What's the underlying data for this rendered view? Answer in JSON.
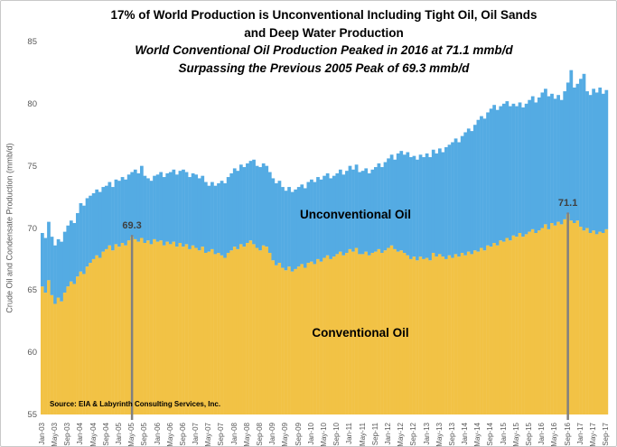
{
  "title": {
    "line1": "17% of World Production is Unconventional Including Tight Oil, Oil Sands",
    "line2": "and Deep Water Production",
    "line3": "World Conventional Oil Production Peaked in 2016 at 71.1 mmb/d",
    "line4": "Surpassing the Previous 2005 Peak of 69.3 mmb/d"
  },
  "source_note": "Source: EIA &  Labyrinth Consulting  Services, Inc.",
  "chart_data": {
    "type": "bar",
    "stacked": true,
    "frequency": "monthly",
    "x_start": "Jan-03",
    "x_end": "Sep-17",
    "ylabel": "Crude Oil and Condensate Production  (mmb/d)",
    "ylim": [
      55,
      85
    ],
    "yticks": [
      85,
      80,
      75,
      70,
      65,
      60,
      55
    ],
    "grid": false,
    "x_tick_labels": [
      "Jan-03",
      "May-03",
      "Sep-03",
      "Jan-04",
      "May-04",
      "Sep-04",
      "Jan-05",
      "May-05",
      "Sep-05",
      "Jan-06",
      "May-06",
      "Sep-06",
      "Jan-07",
      "May-07",
      "Sep-07",
      "Jan-08",
      "May-08",
      "Sep-08",
      "Jan-09",
      "May-09",
      "Sep-09",
      "Jan-10",
      "May-10",
      "Sep-10",
      "Jan-11",
      "May-11",
      "Sep-11",
      "Jan-12",
      "May-12",
      "Sep-12",
      "Jan-13",
      "May-13",
      "Sep-13",
      "Jan-14",
      "May-14",
      "Sep-14",
      "Jan-15",
      "May-15",
      "Sep-15",
      "Jan-16",
      "May-16",
      "Sep-16",
      "Jan-17",
      "May-17",
      "Sep-17"
    ],
    "x_tick_interval_months": 4,
    "annotation_line_color": "#808080",
    "annotations": [
      {
        "text": "69.3",
        "x": "May-05",
        "month_index": 28,
        "y": 69.3
      },
      {
        "text": "71.1",
        "x": "Sep-16",
        "month_index": 164,
        "y": 71.1
      }
    ],
    "series": [
      {
        "name": "Conventional Oil",
        "color": "#F2C245",
        "values": [
          65.3,
          64.8,
          65.8,
          64.6,
          63.9,
          64.4,
          64.1,
          64.8,
          65.3,
          65.7,
          65.5,
          66.1,
          66.5,
          66.3,
          66.9,
          67.2,
          67.5,
          67.8,
          67.6,
          68.1,
          68.3,
          68.6,
          68.2,
          68.7,
          68.5,
          68.8,
          68.6,
          69.0,
          69.3,
          69.1,
          68.9,
          69.2,
          68.8,
          69.0,
          68.7,
          69.1,
          68.9,
          69.0,
          68.6,
          68.9,
          68.7,
          68.9,
          68.5,
          68.8,
          68.5,
          68.7,
          68.3,
          68.6,
          68.4,
          68.2,
          68.5,
          68.0,
          68.1,
          68.3,
          67.9,
          68.0,
          67.8,
          67.6,
          68.0,
          68.2,
          68.5,
          68.3,
          68.7,
          68.5,
          68.8,
          69.0,
          68.7,
          68.4,
          68.2,
          68.6,
          68.5,
          68.0,
          67.4,
          67.0,
          67.2,
          66.8,
          66.6,
          66.9,
          66.5,
          66.7,
          66.9,
          67.1,
          66.8,
          67.2,
          67.3,
          67.1,
          67.5,
          67.3,
          67.6,
          67.8,
          67.5,
          67.7,
          67.9,
          68.1,
          67.8,
          68.0,
          68.3,
          68.1,
          68.4,
          67.9,
          67.9,
          68.1,
          67.8,
          68.0,
          68.1,
          68.3,
          68.0,
          68.2,
          68.4,
          68.6,
          68.3,
          68.1,
          68.2,
          68.0,
          67.8,
          67.5,
          67.7,
          67.4,
          67.7,
          67.5,
          67.6,
          67.4,
          68.0,
          67.7,
          67.9,
          67.7,
          67.5,
          67.8,
          67.6,
          67.9,
          67.7,
          68.0,
          67.8,
          68.1,
          67.9,
          68.2,
          68.1,
          68.4,
          68.2,
          68.6,
          68.5,
          68.8,
          68.6,
          69.0,
          68.9,
          69.2,
          69.0,
          69.4,
          69.3,
          69.6,
          69.3,
          69.5,
          69.7,
          69.9,
          69.6,
          69.8,
          70.0,
          70.3,
          69.9,
          70.4,
          70.2,
          70.5,
          70.3,
          70.7,
          71.1,
          70.6,
          70.4,
          70.6,
          70.1,
          69.8,
          70.0,
          69.6,
          69.8,
          69.5,
          69.7,
          69.6,
          69.9
        ]
      },
      {
        "name": "Unconventional Oil",
        "color": "#54ABE3",
        "note": "plotted as total liquids minus conventional",
        "total_values": [
          69.6,
          69.2,
          70.5,
          69.3,
          68.6,
          69.1,
          68.9,
          69.7,
          70.2,
          70.6,
          70.4,
          71.2,
          72.0,
          71.8,
          72.4,
          72.6,
          72.8,
          73.1,
          72.9,
          73.3,
          73.4,
          73.7,
          73.3,
          73.9,
          73.8,
          74.1,
          73.9,
          74.3,
          74.5,
          74.7,
          74.4,
          75.0,
          74.2,
          74.0,
          73.8,
          74.2,
          74.3,
          74.5,
          74.1,
          74.4,
          74.5,
          74.7,
          74.3,
          74.6,
          74.7,
          74.5,
          74.1,
          74.4,
          74.3,
          74.0,
          74.2,
          73.7,
          73.4,
          73.7,
          73.4,
          73.6,
          73.8,
          73.6,
          74.1,
          74.4,
          74.8,
          74.6,
          75.1,
          74.9,
          75.2,
          75.4,
          75.5,
          75.0,
          74.9,
          75.2,
          75.0,
          74.5,
          74.0,
          73.6,
          73.8,
          73.3,
          73.0,
          73.3,
          72.9,
          73.1,
          73.3,
          73.5,
          73.2,
          73.7,
          73.9,
          73.7,
          74.1,
          73.9,
          74.2,
          74.4,
          74.0,
          74.2,
          74.4,
          74.7,
          74.3,
          74.6,
          75.0,
          74.7,
          75.1,
          74.5,
          74.6,
          74.8,
          74.4,
          74.7,
          74.9,
          75.2,
          74.9,
          75.3,
          75.6,
          75.9,
          75.5,
          76.0,
          76.2,
          75.9,
          76.1,
          75.7,
          75.8,
          75.5,
          75.9,
          75.7,
          76.0,
          75.7,
          76.3,
          76.0,
          76.4,
          76.1,
          76.5,
          76.7,
          76.9,
          77.2,
          76.9,
          77.4,
          77.7,
          78.0,
          77.8,
          78.3,
          78.7,
          79.0,
          78.8,
          79.3,
          79.6,
          79.9,
          79.5,
          79.8,
          80.0,
          80.2,
          79.8,
          80.0,
          79.8,
          80.1,
          79.7,
          80.0,
          80.3,
          80.6,
          80.1,
          80.5,
          80.9,
          81.2,
          80.6,
          80.8,
          80.4,
          80.7,
          80.3,
          81.0,
          81.7,
          82.7,
          81.3,
          81.6,
          82.0,
          82.4,
          81.0,
          80.7,
          81.2,
          80.9,
          81.3,
          80.8,
          81.1
        ]
      }
    ]
  }
}
